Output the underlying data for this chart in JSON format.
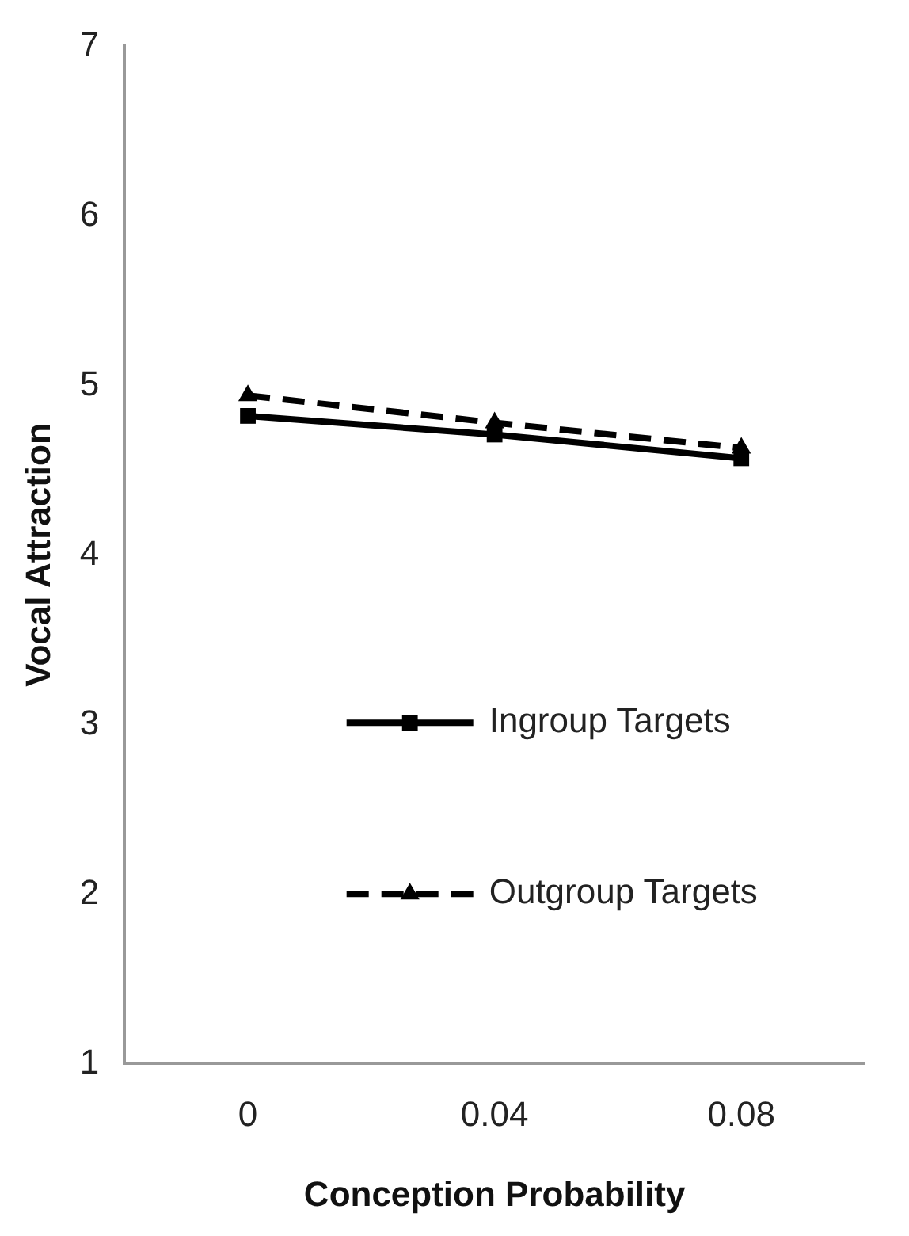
{
  "chart_data": {
    "type": "line",
    "xlabel": "Conception Probability",
    "ylabel": "Vocal Attraction",
    "categories": [
      "0",
      "0.04",
      "0.08"
    ],
    "series": [
      {
        "name": "Ingroup Targets",
        "color": "#000000",
        "values": [
          4.82,
          4.71,
          4.57
        ],
        "marker": "square",
        "line_style": "solid"
      },
      {
        "name": "Outgroup Targets",
        "color": "#000000",
        "values": [
          4.94,
          4.78,
          4.63
        ],
        "marker": "triangle",
        "line_style": "dashed"
      }
    ],
    "ylim": [
      1,
      7
    ],
    "yticks": [
      1,
      2,
      3,
      4,
      5,
      6,
      7
    ],
    "grid": false,
    "legend": "center"
  }
}
